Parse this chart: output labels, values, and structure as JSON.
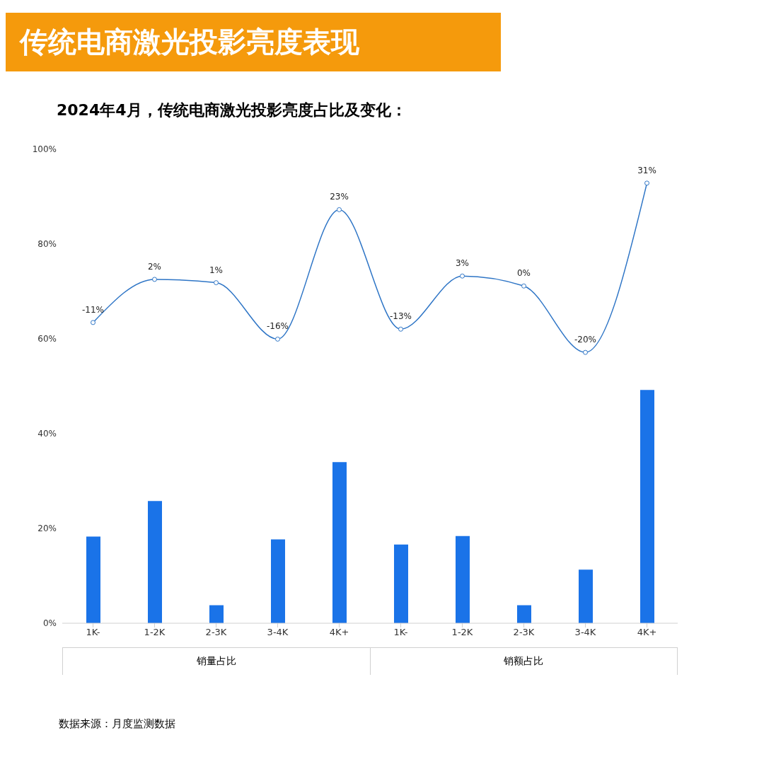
{
  "chart_data": {
    "type": "bar",
    "title": "传统电商激光投影亮度表现",
    "subtitle": "2024年4月，传统电商激光投影亮度占比及变化：",
    "categories": [
      "1K-",
      "1-2K",
      "2-3K",
      "3-4K",
      "4K+",
      "1K-",
      "1-2K",
      "2-3K",
      "3-4K",
      "4K+"
    ],
    "series": [
      {
        "color": "#1a73e8",
        "values": [
          18.3,
          25.8,
          3.8,
          17.7,
          34.0,
          16.6,
          18.4,
          3.8,
          11.3,
          49.2
        ]
      },
      {
        "type": "line",
        "axis": "y2",
        "color": "#2e75c6",
        "values": [
          -11,
          2,
          1,
          -16,
          23,
          -13,
          3,
          0,
          -20,
          31
        ],
        "value_labels": [
          "-11%",
          "2%",
          "1%",
          "-16%",
          "23%",
          "-13%",
          "3%",
          "0%",
          "-20%",
          "31%"
        ]
      }
    ],
    "ylim": [
      0,
      100
    ],
    "yticks": [
      {
        "value": 0,
        "label": "0%"
      },
      {
        "value": 20,
        "label": "20%"
      },
      {
        "value": 40,
        "label": "40%"
      },
      {
        "value": 60,
        "label": "60%"
      },
      {
        "value": 80,
        "label": "80%"
      },
      {
        "value": 100,
        "label": "100%"
      }
    ],
    "marker": "circle",
    "grid": false,
    "legend": false,
    "annotations": [
      "销量占比",
      "销额占比",
      "数据来源：月度监测数据"
    ]
  }
}
